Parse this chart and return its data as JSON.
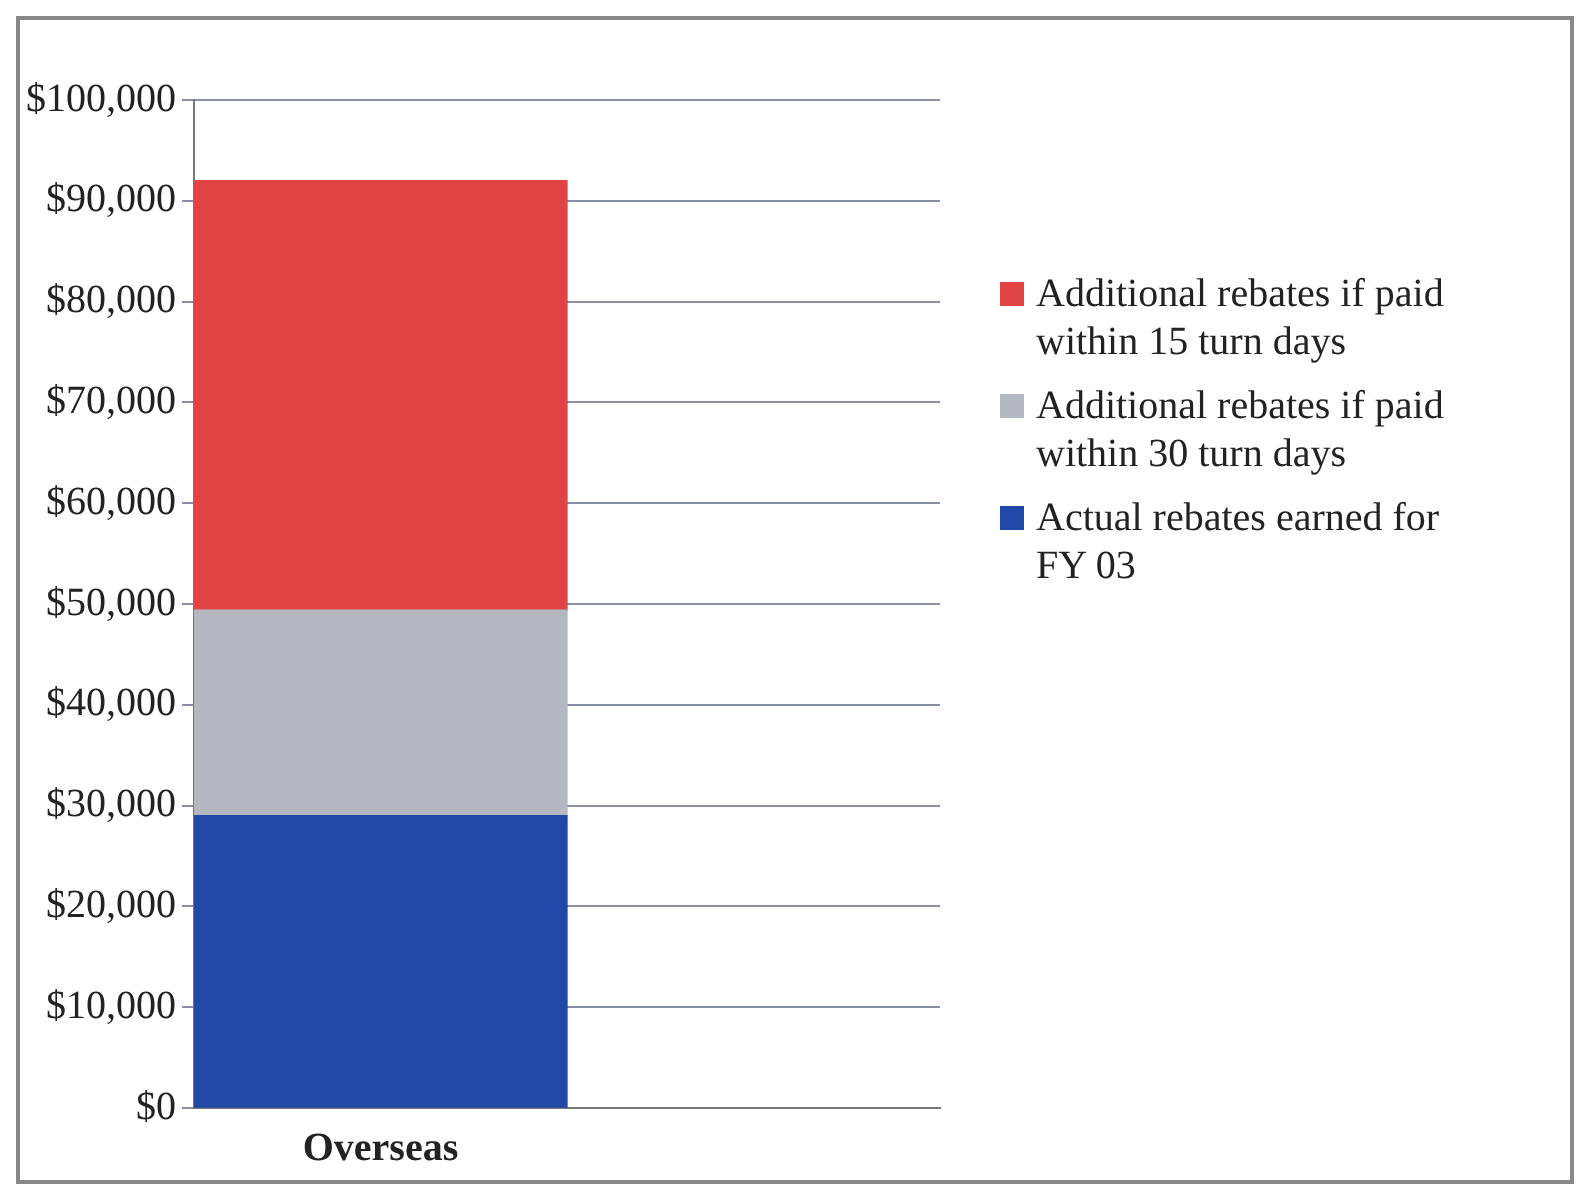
{
  "chart_data": {
    "type": "bar",
    "stacked": true,
    "categories": [
      "Overseas",
      null
    ],
    "series": [
      {
        "name": "Actual rebates earned for FY 03",
        "color": "#1f48a8",
        "values": [
          29000,
          null
        ]
      },
      {
        "name": "Additional rebates if paid within 30 turn days",
        "color": "#b4b8c0",
        "values": [
          20400,
          null
        ]
      },
      {
        "name": "Additional rebates if paid within 15 turn days",
        "color": "#e04444",
        "values": [
          42600,
          null
        ]
      }
    ],
    "ylim": [
      0,
      100000
    ],
    "yticks": [
      {
        "value": 0,
        "label": "$0"
      },
      {
        "value": 10000,
        "label": "$10,000"
      },
      {
        "value": 20000,
        "label": "$20,000"
      },
      {
        "value": 30000,
        "label": "$30,000"
      },
      {
        "value": 40000,
        "label": "$40,000"
      },
      {
        "value": 50000,
        "label": "$50,000"
      },
      {
        "value": 60000,
        "label": "$60,000"
      },
      {
        "value": 70000,
        "label": "$70,000"
      },
      {
        "value": 80000,
        "label": "$80,000"
      },
      {
        "value": 90000,
        "label": "$90,000"
      },
      {
        "value": 100000,
        "label": "$100,000"
      }
    ],
    "grid": "y",
    "legend": "right"
  }
}
